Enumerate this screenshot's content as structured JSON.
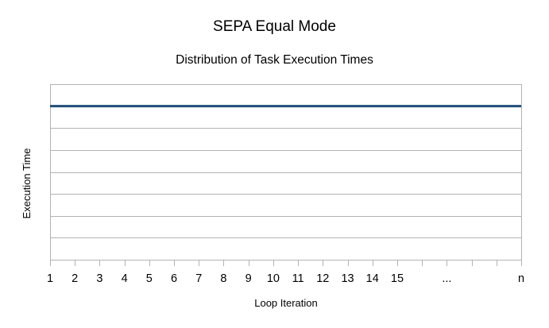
{
  "chart_data": {
    "type": "line",
    "title": "SEPA Equal Mode",
    "subtitle": "Distribution of Task Execution Times",
    "xlabel": "Loop Iteration",
    "ylabel": "Execution Time",
    "categories": [
      "1",
      "2",
      "3",
      "4",
      "5",
      "6",
      "7",
      "8",
      "9",
      "10",
      "11",
      "12",
      "13",
      "14",
      "15",
      "",
      "...",
      "",
      "",
      "n"
    ],
    "series": [
      {
        "values": [
          7,
          7,
          7,
          7,
          7,
          7,
          7,
          7,
          7,
          7,
          7,
          7,
          7,
          7,
          7,
          7,
          7,
          7,
          7,
          7
        ]
      }
    ],
    "ylim": [
      0,
      8
    ],
    "y_gridlines": 8,
    "y_tick_labels_shown": false,
    "grid": true,
    "legend": "none",
    "line_color": "#1f4e79",
    "grid_color": "#b3b3b3",
    "axis_color": "#b3b3b3"
  }
}
